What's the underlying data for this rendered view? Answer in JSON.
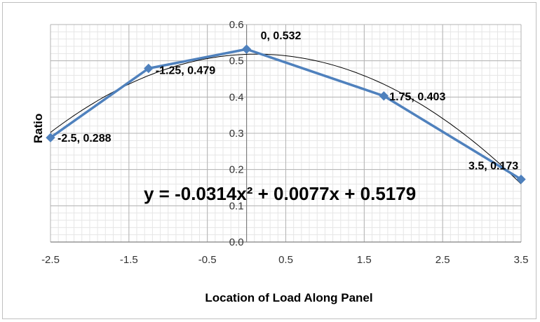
{
  "chart_data": {
    "type": "scatter",
    "title": "",
    "xlabel": "Location of Load Along Panel",
    "ylabel": "Ratio",
    "xlim": [
      -2.5,
      3.5
    ],
    "ylim": [
      0.0,
      0.6
    ],
    "x_ticks": [
      "-2.5",
      "-1.5",
      "-0.5",
      "0.5",
      "1.5",
      "2.5",
      "3.5"
    ],
    "y_ticks": [
      "0.0",
      "0.1",
      "0.2",
      "0.3",
      "0.4",
      "0.5",
      "0.6"
    ],
    "x_tick_values": [
      -2.5,
      -1.5,
      -0.5,
      0.5,
      1.5,
      2.5,
      3.5
    ],
    "y_tick_values": [
      0.0,
      0.1,
      0.2,
      0.3,
      0.4,
      0.5,
      0.6
    ],
    "grid": true,
    "minor_grid": true,
    "series": [
      {
        "color": "#4f81bd",
        "x": [
          -2.5,
          -1.25,
          0,
          1.75,
          3.5
        ],
        "y": [
          0.288,
          0.479,
          0.532,
          0.403,
          0.173
        ],
        "labels": [
          "-2.5, 0.288",
          "-1.25, 0.479",
          "0, 0.532",
          "1.75, 0.403",
          "3.5, 0.173"
        ]
      }
    ],
    "trendline": {
      "type": "polynomial",
      "order": 2,
      "coefficients": [
        -0.0314,
        0.0077,
        0.5179
      ],
      "color": "#000000",
      "equation_text": "y = -0.0314x² + 0.0077x + 0.5179"
    }
  }
}
